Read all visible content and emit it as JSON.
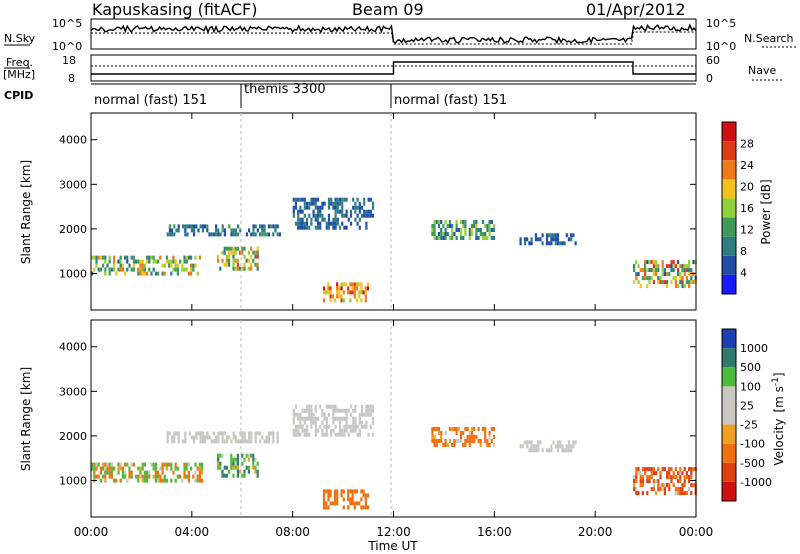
{
  "header": {
    "station": "Kapuskasing (fitACF)",
    "beam": "Beam 09",
    "date": "01/Apr/2012"
  },
  "colors": {
    "power_scale": [
      "#1a1aff",
      "#1f4fa6",
      "#2f7d80",
      "#3f9b5a",
      "#8fd13a",
      "#f2c21a",
      "#f07a1a",
      "#e03a15",
      "#d01010"
    ],
    "velocity_scale": [
      "#1a3fb0",
      "#2f7a6a",
      "#4dbb3a",
      "#c8c8c0",
      "#c8c8c0",
      "#f0a020",
      "#f07010",
      "#e04010",
      "#d01010"
    ]
  },
  "panels": {
    "nsky": {
      "left_label": "N.Sky",
      "left_ticks": [
        "10^5",
        "10^0"
      ],
      "right_label": "N.Search",
      "right_ticks": [
        "10^5",
        "10^0"
      ]
    },
    "freq": {
      "left_label_1": "Freq.",
      "left_label_2": "[MHz]",
      "left_ticks": [
        "18",
        "8"
      ],
      "right_label": "Nave",
      "right_ticks": [
        "60",
        "0"
      ]
    },
    "cpid": {
      "label": "CPID",
      "segments": [
        "normal (fast) 151",
        "themis 3300",
        "normal (fast) 151"
      ]
    }
  },
  "chart_data": [
    {
      "type": "heatmap",
      "title": "Power",
      "ylabel": "Slant Range [km]",
      "xlabel": "Time UT",
      "x_range_hours": [
        0,
        24
      ],
      "ylim": [
        180,
        4600
      ],
      "y_ticks": [
        "1000",
        "2000",
        "3000",
        "4000"
      ],
      "x_ticks": [
        "00:00",
        "04:00",
        "08:00",
        "12:00",
        "16:00",
        "20:00",
        "00:00"
      ],
      "colorbar_label": "Power [dB]",
      "colorbar_ticks": [
        "4",
        "8",
        "12",
        "16",
        "20",
        "24",
        "28"
      ],
      "echo_regions": [
        {
          "t_start": 0.0,
          "t_end": 4.4,
          "range_km": [
            1000,
            1400
          ],
          "power_db": [
            6,
            24
          ]
        },
        {
          "t_start": 3.0,
          "t_end": 7.5,
          "range_km": [
            1900,
            2100
          ],
          "power_db": [
            4,
            12
          ]
        },
        {
          "t_start": 5.0,
          "t_end": 6.6,
          "range_km": [
            1100,
            1600
          ],
          "power_db": [
            8,
            26
          ]
        },
        {
          "t_start": 8.0,
          "t_end": 11.2,
          "range_km": [
            2000,
            2700
          ],
          "power_db": [
            4,
            10
          ]
        },
        {
          "t_start": 9.2,
          "t_end": 11.0,
          "range_km": [
            400,
            800
          ],
          "power_db": [
            16,
            30
          ]
        },
        {
          "t_start": 13.5,
          "t_end": 16.0,
          "range_km": [
            1800,
            2200
          ],
          "power_db": [
            6,
            18
          ]
        },
        {
          "t_start": 17.0,
          "t_end": 19.2,
          "range_km": [
            1700,
            1900
          ],
          "power_db": [
            4,
            8
          ]
        },
        {
          "t_start": 21.5,
          "t_end": 24.0,
          "range_km": [
            700,
            1300
          ],
          "power_db": [
            6,
            28
          ]
        }
      ]
    },
    {
      "type": "heatmap",
      "title": "Velocity",
      "ylabel": "Slant Range [km]",
      "xlabel": "Time UT",
      "x_range_hours": [
        0,
        24
      ],
      "ylim": [
        180,
        4600
      ],
      "y_ticks": [
        "1000",
        "2000",
        "3000",
        "4000"
      ],
      "x_ticks": [
        "00:00",
        "04:00",
        "08:00",
        "12:00",
        "16:00",
        "20:00",
        "00:00"
      ],
      "colorbar_label_main": "Velocity",
      "colorbar_label_unit": "[m s",
      "colorbar_label_exp": "-1",
      "colorbar_label_close": "]",
      "colorbar_ticks": [
        "1000",
        "500",
        "100",
        "25",
        "-25",
        "-100",
        "-500",
        "-1000"
      ],
      "echo_regions": [
        {
          "t_start": 0.0,
          "t_end": 4.4,
          "range_km": [
            1000,
            1400
          ],
          "velocity_ms": [
            -500,
            500
          ]
        },
        {
          "t_start": 3.0,
          "t_end": 7.5,
          "range_km": [
            1900,
            2100
          ],
          "velocity_ms": [
            -25,
            25
          ]
        },
        {
          "t_start": 5.0,
          "t_end": 6.6,
          "range_km": [
            1100,
            1600
          ],
          "velocity_ms": [
            -100,
            1000
          ]
        },
        {
          "t_start": 8.0,
          "t_end": 11.2,
          "range_km": [
            2000,
            2700
          ],
          "velocity_ms": [
            -25,
            25
          ]
        },
        {
          "t_start": 9.2,
          "t_end": 11.0,
          "range_km": [
            400,
            800
          ],
          "velocity_ms": [
            -500,
            -100
          ]
        },
        {
          "t_start": 13.5,
          "t_end": 16.0,
          "range_km": [
            1800,
            2200
          ],
          "velocity_ms": [
            -500,
            25
          ]
        },
        {
          "t_start": 17.0,
          "t_end": 19.2,
          "range_km": [
            1700,
            1900
          ],
          "velocity_ms": [
            -25,
            25
          ]
        },
        {
          "t_start": 21.5,
          "t_end": 24.0,
          "range_km": [
            700,
            1300
          ],
          "velocity_ms": [
            -1000,
            100
          ]
        }
      ]
    }
  ]
}
